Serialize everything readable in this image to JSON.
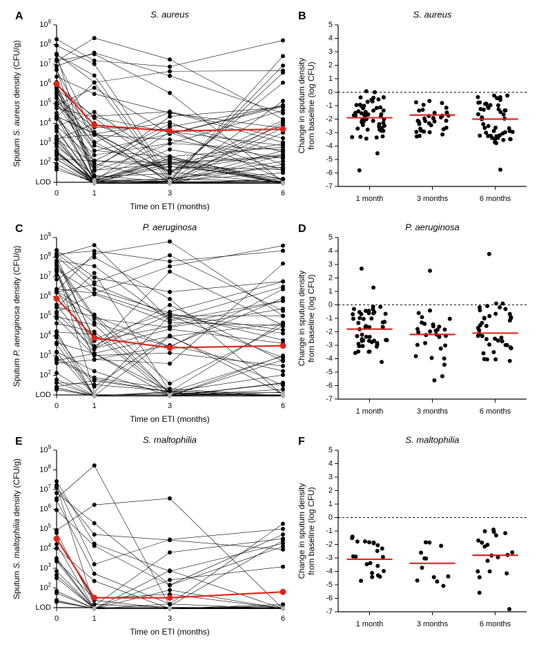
{
  "panels": [
    {
      "id": "A",
      "type": "spaghetti-log",
      "title": "S. aureus",
      "title_style": "italic",
      "xlabel": "Time on ETI (months)",
      "ylabel_prefix": "Sputum ",
      "ylabel_species": "S. aureus",
      "ylabel_suffix": " density (CFU/g)",
      "x_ticks": [
        0,
        1,
        3,
        6
      ],
      "y_log_min": 1,
      "y_log_max": 9,
      "y_lod_log": 1,
      "mean_series": [
        6.0,
        3.9,
        3.6,
        3.7
      ],
      "n_subjects": 60,
      "random_seed": 11,
      "baseline_log_range": [
        1.5,
        8.3
      ],
      "followup_scatter": 2.4,
      "mean_drop": 2.1
    },
    {
      "id": "B",
      "type": "jitter-delta",
      "title": "S. aureus",
      "title_style": "italic",
      "xlabel": "",
      "ylabel": "Change in sputum density\nfrom baseline (log CFU)",
      "x_ticks_labels": [
        "1 month",
        "3 months",
        "6 months"
      ],
      "y_min": -7,
      "y_max": 5,
      "y_tick_step": 1,
      "ref_line": 0,
      "groups": [
        {
          "mean": -1.9,
          "n": 58,
          "spread": 1.6,
          "seed": 21
        },
        {
          "mean": -1.7,
          "n": 35,
          "spread": 1.6,
          "seed": 22
        },
        {
          "mean": -2.0,
          "n": 50,
          "spread": 1.8,
          "seed": 23
        }
      ]
    },
    {
      "id": "C",
      "type": "spaghetti-log",
      "title": "P. aeruginosa",
      "title_style": "italic",
      "xlabel": "Time on ETI (months)",
      "ylabel_prefix": "Sputum ",
      "ylabel_species": "P. aeruginosa",
      "ylabel_suffix": " density (CFU/g)",
      "x_ticks": [
        0,
        1,
        3,
        6
      ],
      "y_log_min": 1,
      "y_log_max": 9,
      "y_lod_log": 1,
      "mean_series": [
        5.9,
        3.9,
        3.4,
        3.5
      ],
      "n_subjects": 50,
      "random_seed": 33,
      "baseline_log_range": [
        1.2,
        8.5
      ],
      "followup_scatter": 2.6,
      "mean_drop": 2.2
    },
    {
      "id": "D",
      "type": "jitter-delta",
      "title": "P. aeruginosa",
      "title_style": "italic",
      "xlabel": "",
      "ylabel": "Change in sputum density\nfrom baseline (log CFU)",
      "x_ticks_labels": [
        "1 month",
        "3 months",
        "6 months"
      ],
      "y_min": -7,
      "y_max": 5,
      "y_tick_step": 1,
      "ref_line": 0,
      "groups": [
        {
          "mean": -1.8,
          "n": 50,
          "spread": 1.8,
          "seed": 41
        },
        {
          "mean": -2.2,
          "n": 30,
          "spread": 1.8,
          "seed": 42
        },
        {
          "mean": -2.1,
          "n": 40,
          "spread": 2.2,
          "seed": 43
        }
      ]
    },
    {
      "id": "E",
      "type": "spaghetti-log",
      "title": "S. maltophilia",
      "title_style": "italic",
      "xlabel": "Time on ETI (months)",
      "ylabel_prefix": "Sputum ",
      "ylabel_species": "S. maltophilia",
      "ylabel_suffix": " density (CFU/g)",
      "x_ticks": [
        0,
        1,
        3,
        6
      ],
      "y_log_min": 1,
      "y_log_max": 9,
      "y_lod_log": 1,
      "mean_series": [
        4.5,
        1.5,
        1.5,
        1.8
      ],
      "n_subjects": 25,
      "random_seed": 55,
      "baseline_log_range": [
        1.2,
        7.5
      ],
      "followup_scatter": 1.8,
      "mean_drop": 3.0
    },
    {
      "id": "F",
      "type": "jitter-delta",
      "title": "S. maltophilia",
      "title_style": "italic",
      "xlabel": "",
      "ylabel": "Change in sputum density\nfrom baseline (log CFU)",
      "x_ticks_labels": [
        "1 month",
        "3 months",
        "6 months"
      ],
      "y_min": -7,
      "y_max": 5,
      "y_tick_step": 1,
      "ref_line": 0,
      "groups": [
        {
          "mean": -3.1,
          "n": 22,
          "spread": 1.8,
          "seed": 61
        },
        {
          "mean": -3.4,
          "n": 12,
          "spread": 1.6,
          "seed": 62
        },
        {
          "mean": -2.8,
          "n": 20,
          "spread": 2.0,
          "seed": 63
        }
      ]
    }
  ],
  "style": {
    "background_color": "#ffffff",
    "axis_color": "#000000",
    "data_color": "#000000",
    "mean_color": "#e2231a",
    "lod_color": "#000000",
    "lod_dash": "3,3",
    "gray_dot_color": "#b0b0b0",
    "marker_radius": 3,
    "mean_marker_radius": 4.5,
    "line_width": 0.6,
    "mean_line_width": 2.2,
    "axis_line_width": 1.2,
    "font_size_title": 13,
    "font_size_axis": 12,
    "font_size_tick": 11,
    "panel_label_size": 16
  }
}
